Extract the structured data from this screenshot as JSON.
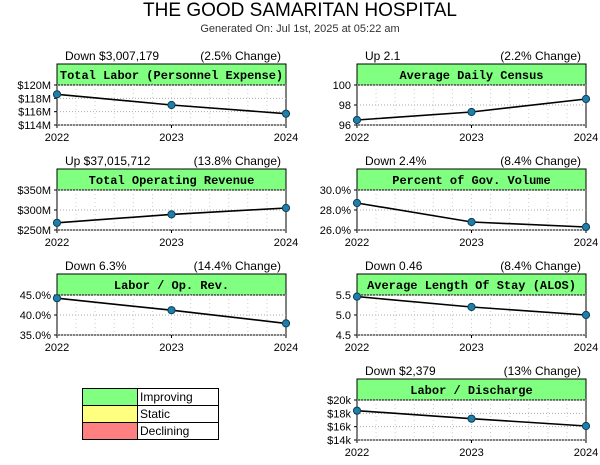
{
  "header": {
    "title": "THE GOOD SAMARITAN HOSPITAL",
    "subtitle": "Generated On: Jul 1st, 2025 at 05:22 am"
  },
  "colors": {
    "panel_title_bg": "#80ff80",
    "improving": "#80ff80",
    "static": "#ffff80",
    "declining": "#ff8080",
    "line": "#000000",
    "marker": "#1f7fa8"
  },
  "legend": [
    {
      "label": "Improving",
      "color": "#80ff80"
    },
    {
      "label": "Static",
      "color": "#ffff80"
    },
    {
      "label": "Declining",
      "color": "#ff8080"
    }
  ],
  "chart_data": [
    {
      "type": "line",
      "title": "Total Labor (Personnel Expense)",
      "change": "Down $3,007,179",
      "pct_change": "(2.5% Change)",
      "status": "improving",
      "x": [
        "2022",
        "2023",
        "2024"
      ],
      "values": [
        118.6,
        117.0,
        115.7
      ],
      "ylim": [
        114,
        120
      ],
      "yticks": [
        120,
        118,
        116,
        114
      ],
      "ytick_labels": [
        "$120M",
        "$118M",
        "$116M",
        "$114M"
      ]
    },
    {
      "type": "line",
      "title": "Average Daily Census",
      "change": "Up 2.1",
      "pct_change": "(2.2% Change)",
      "status": "improving",
      "x": [
        "2022",
        "2023",
        "2024"
      ],
      "values": [
        96.5,
        97.3,
        98.6
      ],
      "ylim": [
        96,
        100
      ],
      "yticks": [
        100,
        98,
        96
      ],
      "ytick_labels": [
        "100",
        "98",
        "96"
      ]
    },
    {
      "type": "line",
      "title": "Total Operating Revenue",
      "change": "Up $37,015,712",
      "pct_change": "(13.8% Change)",
      "status": "improving",
      "x": [
        "2022",
        "2023",
        "2024"
      ],
      "values": [
        268,
        289,
        305
      ],
      "ylim": [
        250,
        350
      ],
      "yticks": [
        350,
        300,
        250
      ],
      "ytick_labels": [
        "$350M",
        "$300M",
        "$250M"
      ]
    },
    {
      "type": "line",
      "title": "Percent of Gov. Volume",
      "change": "Down 2.4%",
      "pct_change": "(8.4% Change)",
      "status": "improving",
      "x": [
        "2022",
        "2023",
        "2024"
      ],
      "values": [
        28.7,
        26.8,
        26.3
      ],
      "ylim": [
        26,
        30
      ],
      "yticks": [
        30,
        28,
        26
      ],
      "ytick_labels": [
        "30.0%",
        "28.0%",
        "26.0%"
      ]
    },
    {
      "type": "line",
      "title": "Labor / Op. Rev.",
      "change": "Down 6.3%",
      "pct_change": "(14.4% Change)",
      "status": "improving",
      "x": [
        "2022",
        "2023",
        "2024"
      ],
      "values": [
        44.2,
        41.2,
        37.9
      ],
      "ylim": [
        35,
        45
      ],
      "yticks": [
        45,
        40,
        35
      ],
      "ytick_labels": [
        "45.0%",
        "40.0%",
        "35.0%"
      ]
    },
    {
      "type": "line",
      "title": "Average Length Of Stay (ALOS)",
      "change": "Down 0.46",
      "pct_change": "(8.4% Change)",
      "status": "improving",
      "x": [
        "2022",
        "2023",
        "2024"
      ],
      "values": [
        5.46,
        5.2,
        5.0
      ],
      "ylim": [
        4.5,
        5.5
      ],
      "yticks": [
        5.5,
        5.0,
        4.5
      ],
      "ytick_labels": [
        "5.5",
        "5.0",
        "4.5"
      ]
    },
    {
      "type": "line",
      "title": "Labor / Discharge",
      "change": "Down $2,379",
      "pct_change": "(13% Change)",
      "status": "improving",
      "x": [
        "2022",
        "2023",
        "2024"
      ],
      "values": [
        18.4,
        17.2,
        16.1
      ],
      "ylim": [
        14,
        20
      ],
      "yticks": [
        20,
        18,
        16,
        14
      ],
      "ytick_labels": [
        "$20k",
        "$18k",
        "$16k",
        "$14k"
      ]
    }
  ]
}
